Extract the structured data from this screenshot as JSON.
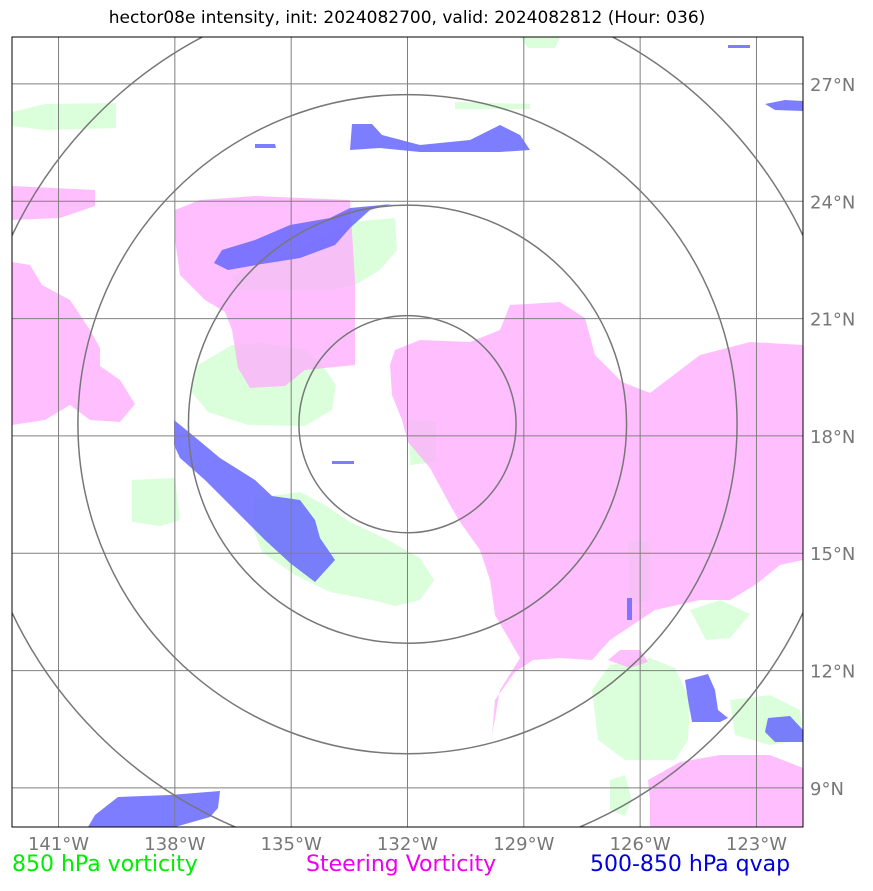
{
  "title": "hector08e intensity, init: 2024082700, valid: 2024082812 (Hour: 036)",
  "map": {
    "lon_range": [
      -142.2,
      -121.8
    ],
    "lat_range": [
      8.0,
      28.2
    ],
    "center": {
      "lon": -132.0,
      "lat": 18.3
    },
    "lon_ticks": [
      {
        "value": -141,
        "label": "141°W"
      },
      {
        "value": -138,
        "label": "138°W"
      },
      {
        "value": -135,
        "label": "135°W"
      },
      {
        "value": -132,
        "label": "132°W"
      },
      {
        "value": -129,
        "label": "129°W"
      },
      {
        "value": -126,
        "label": "126°W"
      },
      {
        "value": -123,
        "label": "123°W"
      }
    ],
    "lat_ticks": [
      {
        "value": 27,
        "label": "27°N"
      },
      {
        "value": 24,
        "label": "24°N"
      },
      {
        "value": 21,
        "label": "21°N"
      },
      {
        "value": 18,
        "label": "18°N"
      },
      {
        "value": 15,
        "label": "15°N"
      },
      {
        "value": 12,
        "label": "12°N"
      },
      {
        "value": 9,
        "label": "9°N"
      }
    ],
    "range_rings_deg": [
      2.8,
      5.65,
      8.5,
      11.3
    ],
    "colors": {
      "vorticity_850": "#ccffcc",
      "steering_vorticity": "#ffaaff",
      "qvap": "#6666ff",
      "grid": "#808080",
      "ring": "#777777",
      "tick_label": "#777777"
    }
  },
  "legend": {
    "vorticity_850": {
      "label": "850 hPa vorticity",
      "color": "#00ee00"
    },
    "steering": {
      "label": "Steering Vorticity",
      "color": "#ee00ee"
    },
    "qvap": {
      "label": "500-850 hPa qvap",
      "color": "#0000dd"
    }
  }
}
